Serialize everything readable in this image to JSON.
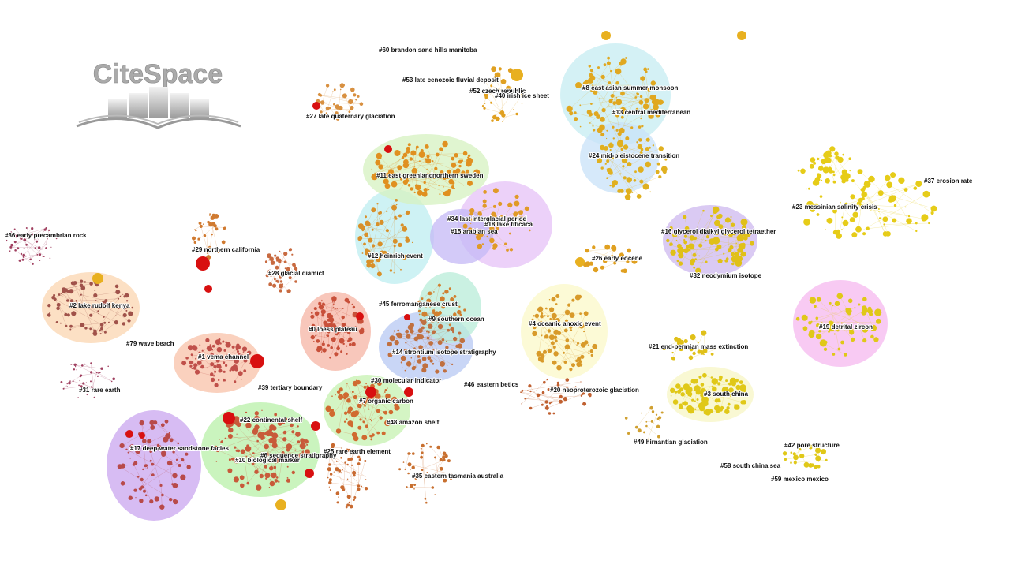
{
  "logo": {
    "title": "CiteSpace"
  },
  "clusters": [
    "#60 brandon sand hills manitoba",
    "#53 late cenozoic fluvial deposit",
    "#52 czech republic",
    "#40 irish ice sheet",
    "#8 east asian summer monsoon",
    "#13 central mediterranean",
    "#27 late quaternary glaciation",
    "#24 mid-pleistocene transition",
    "#11 east greenland",
    "northern sweden",
    "#37 erosion rate",
    "#34 last interglacial period",
    "#18 lake titicaca",
    "#15 arabian sea",
    "#23 messinian salinity crisis",
    "#16 glycerol dialkyl glycerol tetraether",
    "#36 early precambrian rock",
    "#29 northern california",
    "#12 heinrich event",
    "#26 early eocene",
    "#28 glacial diamict",
    "#32 neodymium isotope",
    "#2 lake rudolf kenya",
    "#45 ferromanganese crust",
    "#9 southern ocean",
    "#4 oceanic anoxic event",
    "#0 loess plateau",
    "#19 detrital zircon",
    "#79 wave beach",
    "#21 end-permian mass extinction",
    "#14 strontium isotope stratigraphy",
    "#1 vema channel",
    "#30 molecular indicator",
    "#46 eastern betics",
    "#31 rare earth",
    "#39 tertiary boundary",
    "#20 neoproterozoic glaciation",
    "#3 south china",
    "#7 organic carbon",
    "#22 continental shelf",
    "#48 amazon shelf",
    "#49 hirnantian glaciation",
    "#42 pore structure",
    "#17 deep-water sandstone facies",
    "#25 rare earth element",
    "#6 sequence stratigraphy",
    "#10 biological marker",
    "#58 south china sea",
    "#35 eastern tasmania australia",
    "#59 mexico mexico"
  ]
}
